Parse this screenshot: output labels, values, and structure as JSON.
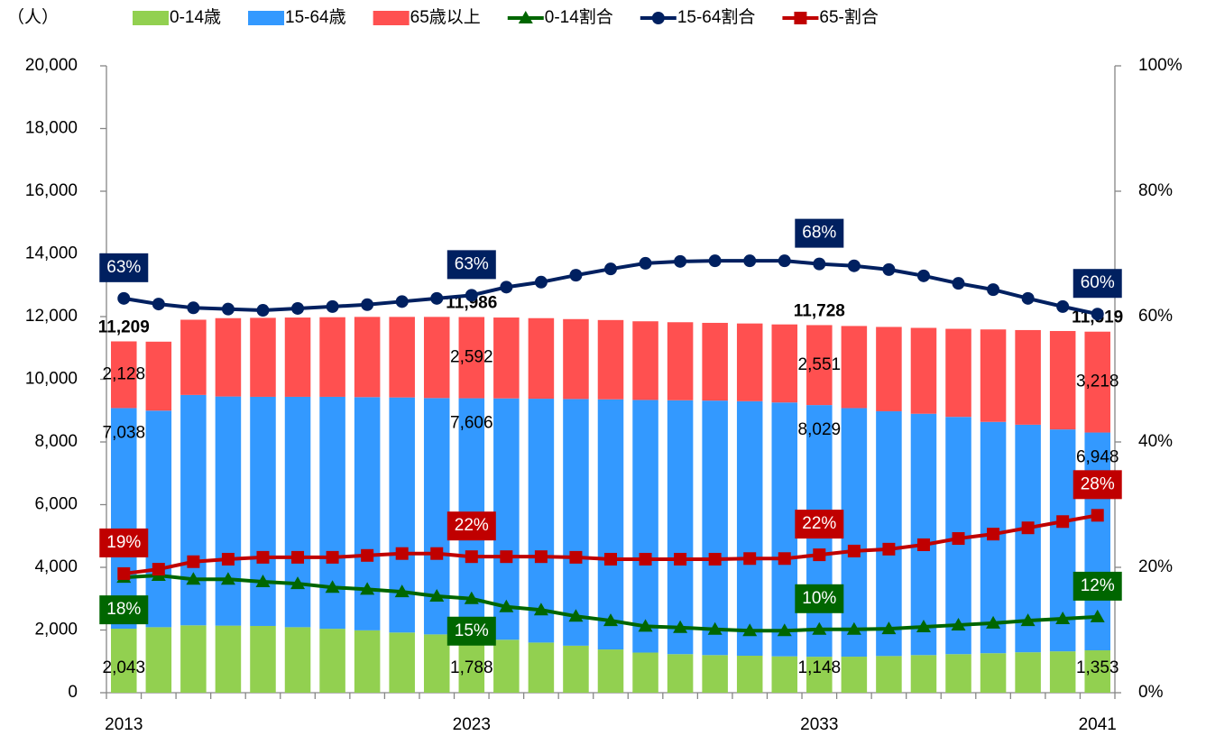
{
  "chart_data": {
    "type": "bar",
    "y_label": "（人）",
    "categories": [
      "2013",
      null,
      null,
      null,
      null,
      null,
      null,
      null,
      null,
      null,
      "2023",
      null,
      null,
      null,
      null,
      null,
      null,
      null,
      null,
      null,
      "2033",
      null,
      null,
      null,
      null,
      null,
      null,
      null,
      "2041"
    ],
    "ylim": [
      0,
      20000
    ],
    "yticks": [
      0,
      {
        "value": 2000,
        "label": "2,000"
      },
      {
        "value": 4000,
        "label": "4,000"
      },
      {
        "value": 6000,
        "label": "6,000"
      },
      {
        "value": 8000,
        "label": "8,000"
      },
      {
        "value": 10000,
        "label": "10,000"
      },
      {
        "value": 12000,
        "label": "12,000"
      },
      {
        "value": 14000,
        "label": "14,000"
      },
      {
        "value": 16000,
        "label": "16,000"
      },
      {
        "value": 18000,
        "label": "18,000"
      },
      {
        "value": 20000,
        "label": "20,000"
      }
    ],
    "y2lim": [
      0,
      100
    ],
    "y2ticks": [
      {
        "value": 0,
        "label": "0%"
      },
      {
        "value": 20,
        "label": "20%"
      },
      {
        "value": 40,
        "label": "40%"
      },
      {
        "value": 60,
        "label": "60%"
      },
      {
        "value": 80,
        "label": "80%"
      },
      {
        "value": 100,
        "label": "100%"
      }
    ],
    "series": [
      {
        "name": "0-14歳",
        "type": "bar",
        "color": "#92D050",
        "values": [
          2043,
          2090,
          2150,
          2140,
          2130,
          2090,
          2040,
          1990,
          1920,
          1860,
          1788,
          1690,
          1600,
          1500,
          1380,
          1280,
          1230,
          1200,
          1180,
          1160,
          1148,
          1150,
          1170,
          1200,
          1230,
          1260,
          1290,
          1320,
          1353
        ],
        "value_labels": [
          "2,043",
          null,
          null,
          null,
          null,
          null,
          null,
          null,
          null,
          null,
          "1,788",
          null,
          null,
          null,
          null,
          null,
          null,
          null,
          null,
          null,
          "1,148",
          null,
          null,
          null,
          null,
          null,
          null,
          null,
          "1,353"
        ]
      },
      {
        "name": "15-64歳",
        "type": "bar",
        "color": "#3399FF",
        "values": [
          7038,
          6910,
          7350,
          7310,
          7310,
          7350,
          7400,
          7440,
          7500,
          7540,
          7606,
          7700,
          7780,
          7870,
          7980,
          8060,
          8100,
          8120,
          8120,
          8100,
          8029,
          7930,
          7810,
          7700,
          7570,
          7380,
          7260,
          7080,
          6948
        ],
        "value_labels": [
          "7,038",
          null,
          null,
          null,
          null,
          null,
          null,
          null,
          null,
          null,
          "7,606",
          null,
          null,
          null,
          null,
          null,
          null,
          null,
          null,
          null,
          "8,029",
          null,
          null,
          null,
          null,
          null,
          null,
          null,
          "6,948"
        ]
      },
      {
        "name": "65歳以上",
        "type": "bar",
        "color": "#FF5050",
        "values": [
          2128,
          2200,
          2400,
          2500,
          2520,
          2530,
          2540,
          2560,
          2570,
          2590,
          2592,
          2580,
          2570,
          2550,
          2530,
          2510,
          2490,
          2480,
          2480,
          2490,
          2551,
          2620,
          2690,
          2740,
          2810,
          2950,
          3020,
          3140,
          3218
        ],
        "value_labels": [
          "2,128",
          null,
          null,
          null,
          null,
          null,
          null,
          null,
          null,
          null,
          "2,592",
          null,
          null,
          null,
          null,
          null,
          null,
          null,
          null,
          null,
          "2,551",
          null,
          null,
          null,
          null,
          null,
          null,
          null,
          "3,218"
        ]
      },
      {
        "name": "0-14割合",
        "type": "line",
        "axis": "y2",
        "color": "#006600",
        "marker": "triangle",
        "values": [
          18.4,
          18.7,
          18.1,
          18.1,
          17.7,
          17.4,
          16.8,
          16.5,
          16.1,
          15.4,
          15.0,
          13.7,
          13.2,
          12.2,
          11.5,
          10.6,
          10.4,
          10.1,
          9.9,
          9.9,
          10.1,
          10.1,
          10.2,
          10.5,
          10.8,
          11.1,
          11.5,
          11.8,
          12.1
        ],
        "value_labels": [
          "18%",
          null,
          null,
          null,
          null,
          null,
          null,
          null,
          null,
          null,
          "15%",
          null,
          null,
          null,
          null,
          null,
          null,
          null,
          null,
          null,
          "10%",
          null,
          null,
          null,
          null,
          null,
          null,
          null,
          "12%"
        ]
      },
      {
        "name": "15-64割合",
        "type": "line",
        "axis": "y2",
        "color": "#002060",
        "marker": "circle",
        "values": [
          62.9,
          62.0,
          61.4,
          61.2,
          61.0,
          61.3,
          61.6,
          61.9,
          62.4,
          62.9,
          63.4,
          64.7,
          65.5,
          66.6,
          67.6,
          68.5,
          68.8,
          68.9,
          68.9,
          68.9,
          68.4,
          68.1,
          67.5,
          66.5,
          65.3,
          64.3,
          62.9,
          61.6,
          60.4
        ],
        "value_labels": [
          "63%",
          null,
          null,
          null,
          null,
          null,
          null,
          null,
          null,
          null,
          "63%",
          null,
          null,
          null,
          null,
          null,
          null,
          null,
          null,
          null,
          "68%",
          null,
          null,
          null,
          null,
          null,
          null,
          null,
          "60%"
        ]
      },
      {
        "name": "65-割合",
        "type": "line",
        "axis": "y2",
        "color": "#C00000",
        "marker": "square",
        "values": [
          19.0,
          19.7,
          20.9,
          21.3,
          21.6,
          21.6,
          21.6,
          21.9,
          22.2,
          22.2,
          21.7,
          21.7,
          21.7,
          21.6,
          21.3,
          21.3,
          21.3,
          21.3,
          21.4,
          21.4,
          22.0,
          22.6,
          22.9,
          23.6,
          24.6,
          25.3,
          26.3,
          27.3,
          28.3
        ],
        "value_labels": [
          "19%",
          null,
          null,
          null,
          null,
          null,
          null,
          null,
          null,
          null,
          "22%",
          null,
          null,
          null,
          null,
          null,
          null,
          null,
          null,
          null,
          "22%",
          null,
          null,
          null,
          null,
          null,
          null,
          null,
          "28%"
        ]
      }
    ],
    "totals": [
      11209,
      null,
      null,
      null,
      null,
      null,
      null,
      null,
      null,
      null,
      11986,
      null,
      null,
      null,
      null,
      null,
      null,
      null,
      null,
      null,
      11728,
      null,
      null,
      null,
      null,
      null,
      null,
      null,
      11519
    ],
    "total_labels": [
      "11,209",
      null,
      null,
      null,
      null,
      null,
      null,
      null,
      null,
      null,
      "11,986",
      null,
      null,
      null,
      null,
      null,
      null,
      null,
      null,
      null,
      "11,728",
      null,
      null,
      null,
      null,
      null,
      null,
      null,
      "11,519"
    ]
  }
}
